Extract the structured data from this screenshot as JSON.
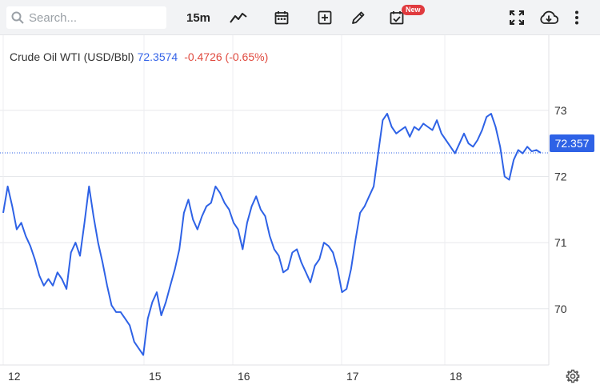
{
  "toolbar": {
    "search_placeholder": "Search...",
    "interval": "15m",
    "new_badge": "New",
    "icons": [
      "search-icon",
      "line-chart-icon",
      "calendar-icon",
      "add-indicator-icon",
      "pencil-icon",
      "calendar-check-icon",
      "fullscreen-icon",
      "cloud-download-icon",
      "more-vertical-icon"
    ]
  },
  "legend": {
    "symbol": "Crude Oil WTI (USD/Bbl)",
    "price": "72.3574",
    "change": "-0.4726 (-0.65%)"
  },
  "price_tag": "72.357",
  "colors": {
    "line": "#2e62e6",
    "up": "#3564e8",
    "down": "#e04a3f",
    "tag": "#2e62e6"
  },
  "chart_data": {
    "type": "line",
    "y_ticks": [
      "73",
      "72",
      "71",
      "70"
    ],
    "x_ticks": [
      "12",
      "15",
      "16",
      "17",
      "18"
    ],
    "ylim": [
      69.15,
      73.7
    ],
    "current_value": 72.357,
    "series": [
      {
        "x": [
          0,
          1,
          2,
          3,
          4,
          5,
          6,
          7,
          8,
          9,
          10,
          11,
          12,
          13,
          14,
          15,
          16,
          17,
          18,
          19,
          20,
          21,
          22,
          23,
          24,
          25,
          26,
          27,
          28,
          29,
          30,
          31,
          32,
          33,
          34,
          35,
          36,
          37,
          38,
          39,
          40,
          41,
          42,
          43,
          44,
          45,
          46,
          47,
          48,
          49,
          50,
          51,
          52,
          53,
          54,
          55,
          56,
          57,
          58,
          59,
          60,
          61,
          62,
          63,
          64,
          65,
          66,
          67,
          68,
          69,
          70,
          71,
          72,
          73,
          74,
          75,
          76,
          77,
          78,
          79,
          80,
          81,
          82,
          83,
          84,
          85,
          86,
          87,
          88,
          89,
          90,
          91,
          92,
          93,
          94,
          95,
          96,
          97,
          98,
          99,
          100,
          101,
          102,
          103,
          104,
          105,
          106,
          107,
          108,
          109,
          110,
          111,
          112,
          113,
          114,
          115,
          116,
          117,
          118,
          119
        ],
        "values": [
          71.45,
          71.85,
          71.55,
          71.2,
          71.3,
          71.1,
          70.95,
          70.75,
          70.5,
          70.35,
          70.45,
          70.35,
          70.55,
          70.45,
          70.3,
          70.85,
          71.0,
          70.8,
          71.3,
          71.85,
          71.4,
          71.0,
          70.7,
          70.35,
          70.05,
          69.95,
          69.95,
          69.85,
          69.75,
          69.5,
          69.4,
          69.3,
          69.85,
          70.1,
          70.25,
          69.9,
          70.1,
          70.35,
          70.6,
          70.9,
          71.45,
          71.65,
          71.35,
          71.2,
          71.4,
          71.55,
          71.6,
          71.85,
          71.75,
          71.6,
          71.5,
          71.3,
          71.2,
          70.9,
          71.3,
          71.55,
          71.7,
          71.5,
          71.4,
          71.1,
          70.9,
          70.8,
          70.55,
          70.6,
          70.85,
          70.9,
          70.7,
          70.55,
          70.4,
          70.65,
          70.75,
          71.0,
          70.95,
          70.85,
          70.6,
          70.25,
          70.3,
          70.6,
          71.05,
          71.45,
          71.55,
          71.7,
          71.85,
          72.35,
          72.85,
          72.95,
          72.75,
          72.65,
          72.7,
          72.75,
          72.6,
          72.75,
          72.7,
          72.8,
          72.75,
          72.7,
          72.85,
          72.65,
          72.55,
          72.45,
          72.35,
          72.5,
          72.65,
          72.5,
          72.45,
          72.55,
          72.7,
          72.9,
          72.95,
          72.75,
          72.45,
          72.0,
          71.95,
          72.25,
          72.4,
          72.35,
          72.45,
          72.38,
          72.4,
          72.357
        ]
      }
    ],
    "grid": true
  }
}
